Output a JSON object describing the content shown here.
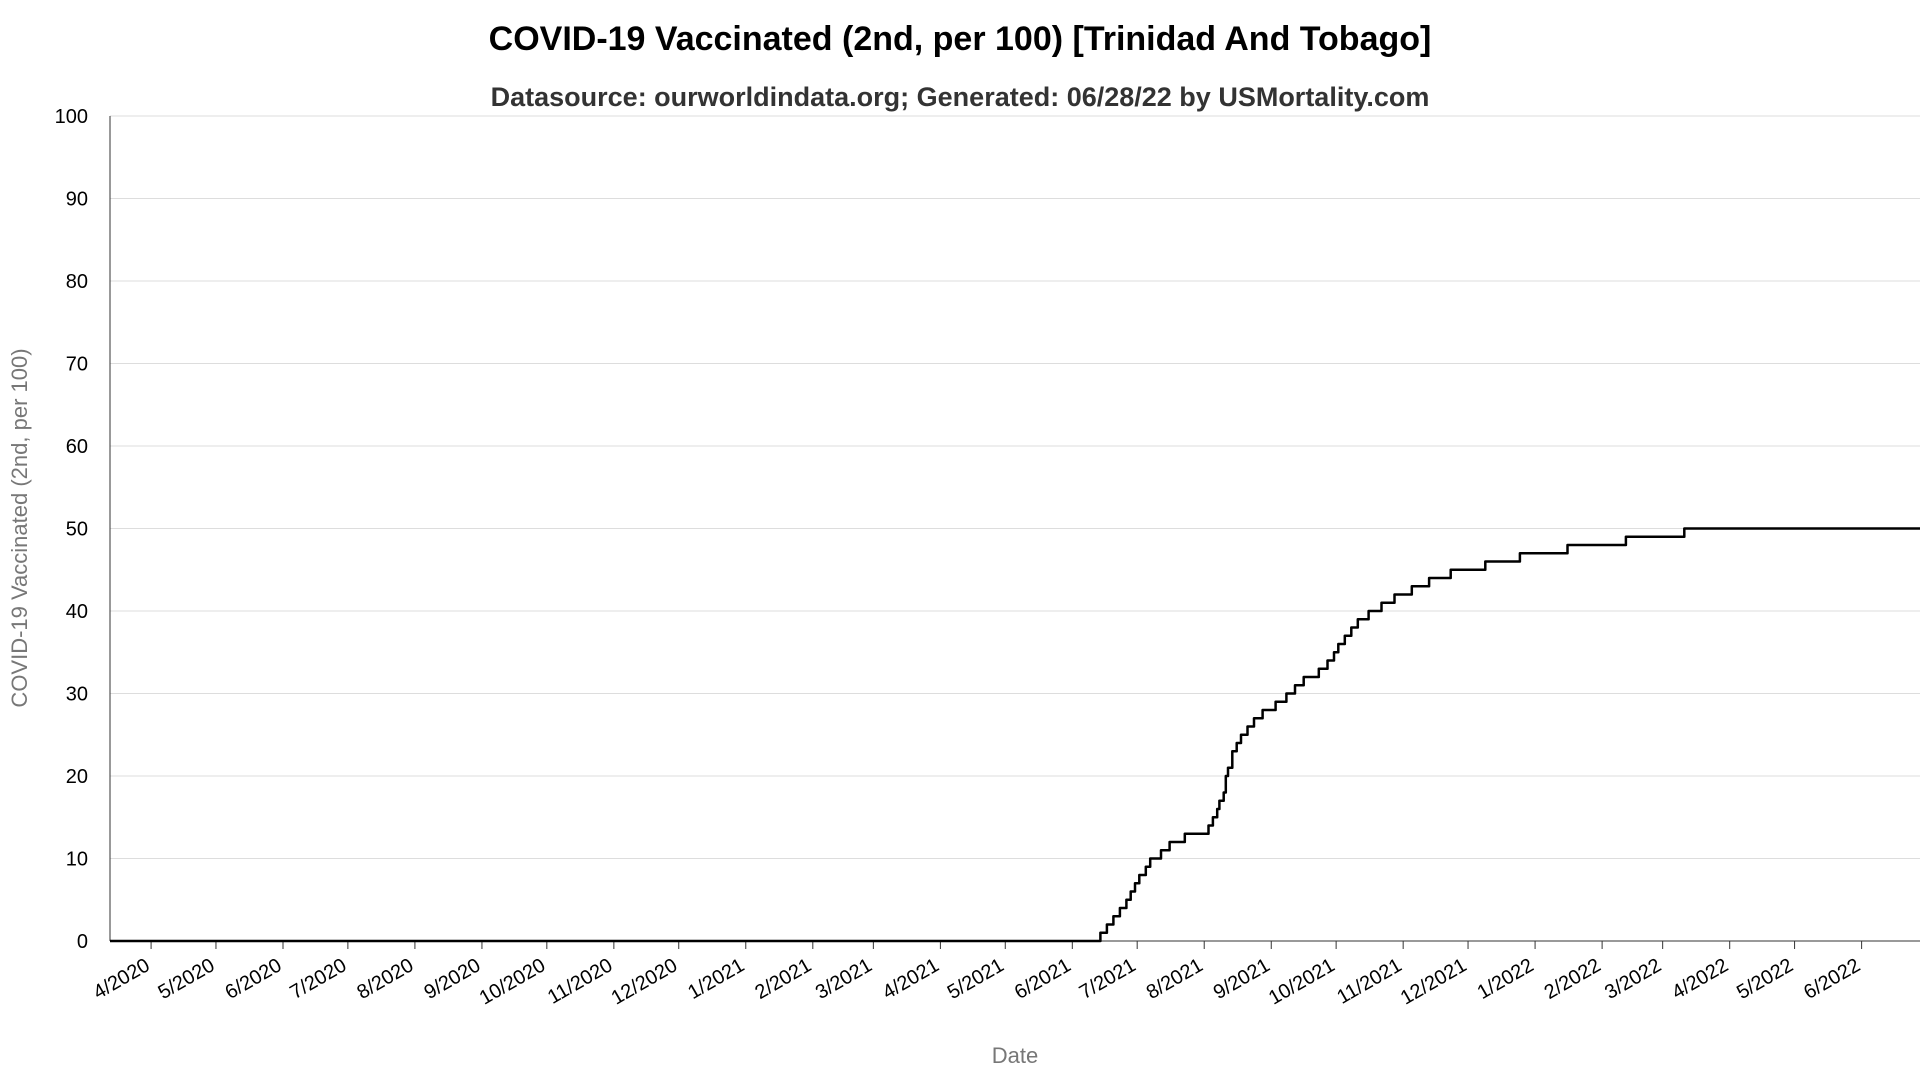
{
  "chart_data": {
    "type": "line",
    "title": "COVID-19 Vaccinated (2nd, per 100) [Trinidad And Tobago]",
    "subtitle": "Datasource: ourworldindata.org; Generated: 06/28/22 by USMortality.com",
    "xlabel": "Date",
    "ylabel": "COVID-19 Vaccinated (2nd, per 100)",
    "ylim": [
      0,
      100
    ],
    "y_ticks": [
      0,
      10,
      20,
      30,
      40,
      50,
      60,
      70,
      80,
      90,
      100
    ],
    "x_ticks": [
      "4/2020",
      "5/2020",
      "6/2020",
      "7/2020",
      "8/2020",
      "9/2020",
      "10/2020",
      "11/2020",
      "12/2020",
      "1/2021",
      "2/2021",
      "3/2021",
      "4/2021",
      "5/2021",
      "6/2021",
      "7/2021",
      "8/2021",
      "9/2021",
      "10/2021",
      "11/2021",
      "12/2021",
      "1/2022",
      "2/2022",
      "3/2022",
      "4/2022",
      "5/2022",
      "6/2022"
    ],
    "x_range": [
      "2020-03-13",
      "2022-06-28"
    ],
    "grid": true,
    "legend": "none",
    "series": [
      {
        "name": "COVID-19 Vaccinated (2nd, per 100)",
        "color": "#000000",
        "step": true,
        "x": [
          "2020-03-13",
          "2021-06-12",
          "2021-06-14",
          "2021-06-17",
          "2021-06-20",
          "2021-06-23",
          "2021-06-26",
          "2021-06-28",
          "2021-06-30",
          "2021-07-02",
          "2021-07-05",
          "2021-07-07",
          "2021-07-12",
          "2021-07-16",
          "2021-07-23",
          "2021-08-03",
          "2021-08-05",
          "2021-08-07",
          "2021-08-08",
          "2021-08-10",
          "2021-08-11",
          "2021-08-12",
          "2021-08-14",
          "2021-08-16",
          "2021-08-18",
          "2021-08-21",
          "2021-08-24",
          "2021-08-28",
          "2021-09-03",
          "2021-09-08",
          "2021-09-12",
          "2021-09-16",
          "2021-09-23",
          "2021-09-27",
          "2021-09-30",
          "2021-10-02",
          "2021-10-05",
          "2021-10-08",
          "2021-10-11",
          "2021-10-16",
          "2021-10-22",
          "2021-10-28",
          "2021-11-05",
          "2021-11-13",
          "2021-11-23",
          "2021-12-09",
          "2021-12-25",
          "2022-01-16",
          "2022-02-12",
          "2022-03-11",
          "2022-06-28"
        ],
        "values": [
          0,
          0,
          1,
          2,
          3,
          4,
          5,
          6,
          7,
          8,
          9,
          10,
          11,
          12,
          13,
          14,
          15,
          16,
          17,
          18,
          20,
          21,
          23,
          24,
          25,
          26,
          27,
          28,
          29,
          30,
          31,
          32,
          33,
          34,
          35,
          36,
          37,
          38,
          39,
          40,
          41,
          42,
          43,
          44,
          45,
          46,
          47,
          48,
          49,
          50,
          50
        ]
      }
    ]
  }
}
